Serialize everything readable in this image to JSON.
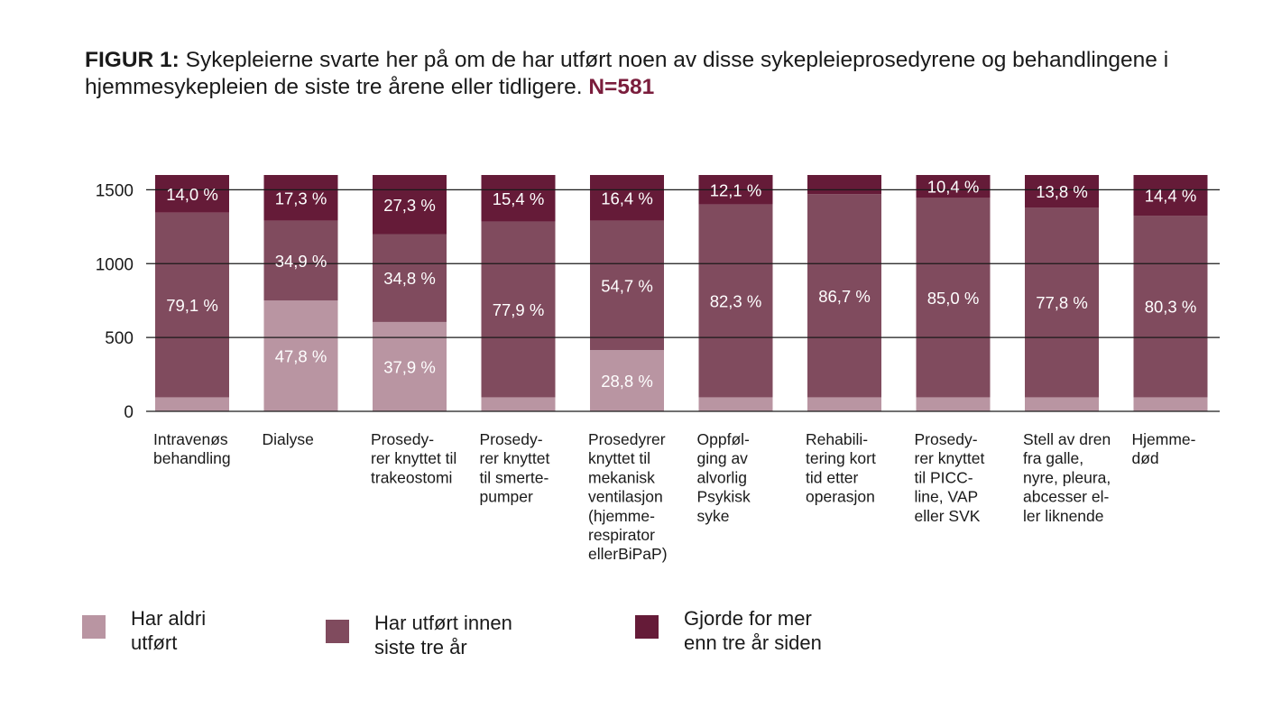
{
  "title": {
    "prefix": "FIGUR 1:",
    "text": " Sykepleierne svarte her på om de har utført noen av disse sykepleieprosedyrene og behandlingene i hjemmesykepleien de siste tre årene eller tidligere.",
    "n": "N=581"
  },
  "colors": {
    "never": "#b995a2",
    "within3": "#804b5e",
    "over3": "#651b38",
    "grid": "#1a1a1a"
  },
  "chart_data": {
    "type": "bar",
    "stacked": true,
    "ylim": [
      0,
      1600
    ],
    "yticks": [
      0,
      500,
      1000,
      1500
    ],
    "ytick_labels": [
      "0",
      "500",
      "1000",
      "1500"
    ],
    "categories": [
      "Intravenøs\nbehandling",
      "Dialyse",
      "Prosedy-\nrer knyttet til\ntrakeostomi",
      "Prosedy-\nrer knyttet\ntil smerte-\npumper",
      "Prosedyrer\nknyttet til\nmekanisk\nventilasjon\n(hjemme-\nrespirator\nellerBiPaP)",
      "Oppføl-\nging av\nalvorlig\nPsykisk\nsyke",
      "Rehabili-\ntering kort\ntid etter\noperasjon",
      "Prosedy-\nrer knyttet\ntil PICC-\nline, VAP\neller SVK",
      "Stell av dren\nfra galle,\nnyre, pleura,\nabcesser el-\nler liknende",
      "Hjemme-\ndød"
    ],
    "series": [
      {
        "name": "Har aldri utført",
        "values": [
          95,
          750,
          605,
          95,
          415,
          95,
          95,
          95,
          95,
          95
        ],
        "labels": [
          "",
          "47,8 %",
          "37,9 %",
          "",
          "28,8 %",
          "",
          "",
          "",
          "",
          ""
        ]
      },
      {
        "name": "Har utført innen siste tre år",
        "values": [
          1250,
          540,
          595,
          1190,
          875,
          1305,
          1375,
          1350,
          1285,
          1230
        ],
        "labels": [
          "79,1 %",
          "34,9 %",
          "34,8 %",
          "77,9 %",
          "54,7 %",
          "82,3 %",
          "86,7 %",
          "85,0 %",
          "77,8 %",
          "80,3 %"
        ]
      },
      {
        "name": "Gjorde for mer enn tre år siden",
        "values": [
          255,
          310,
          400,
          315,
          310,
          200,
          130,
          155,
          220,
          275
        ],
        "labels": [
          "14,0 %",
          "17,3 %",
          "27,3 %",
          "15,4 %",
          "16,4 %",
          "12,1 %",
          "",
          "10,4 %",
          "13,8 %",
          "14,4 %"
        ]
      }
    ],
    "legend": [
      "Har aldri\nutført",
      "Har utført innen\nsiste tre år",
      "Gjorde for mer\nenn tre år siden"
    ]
  }
}
